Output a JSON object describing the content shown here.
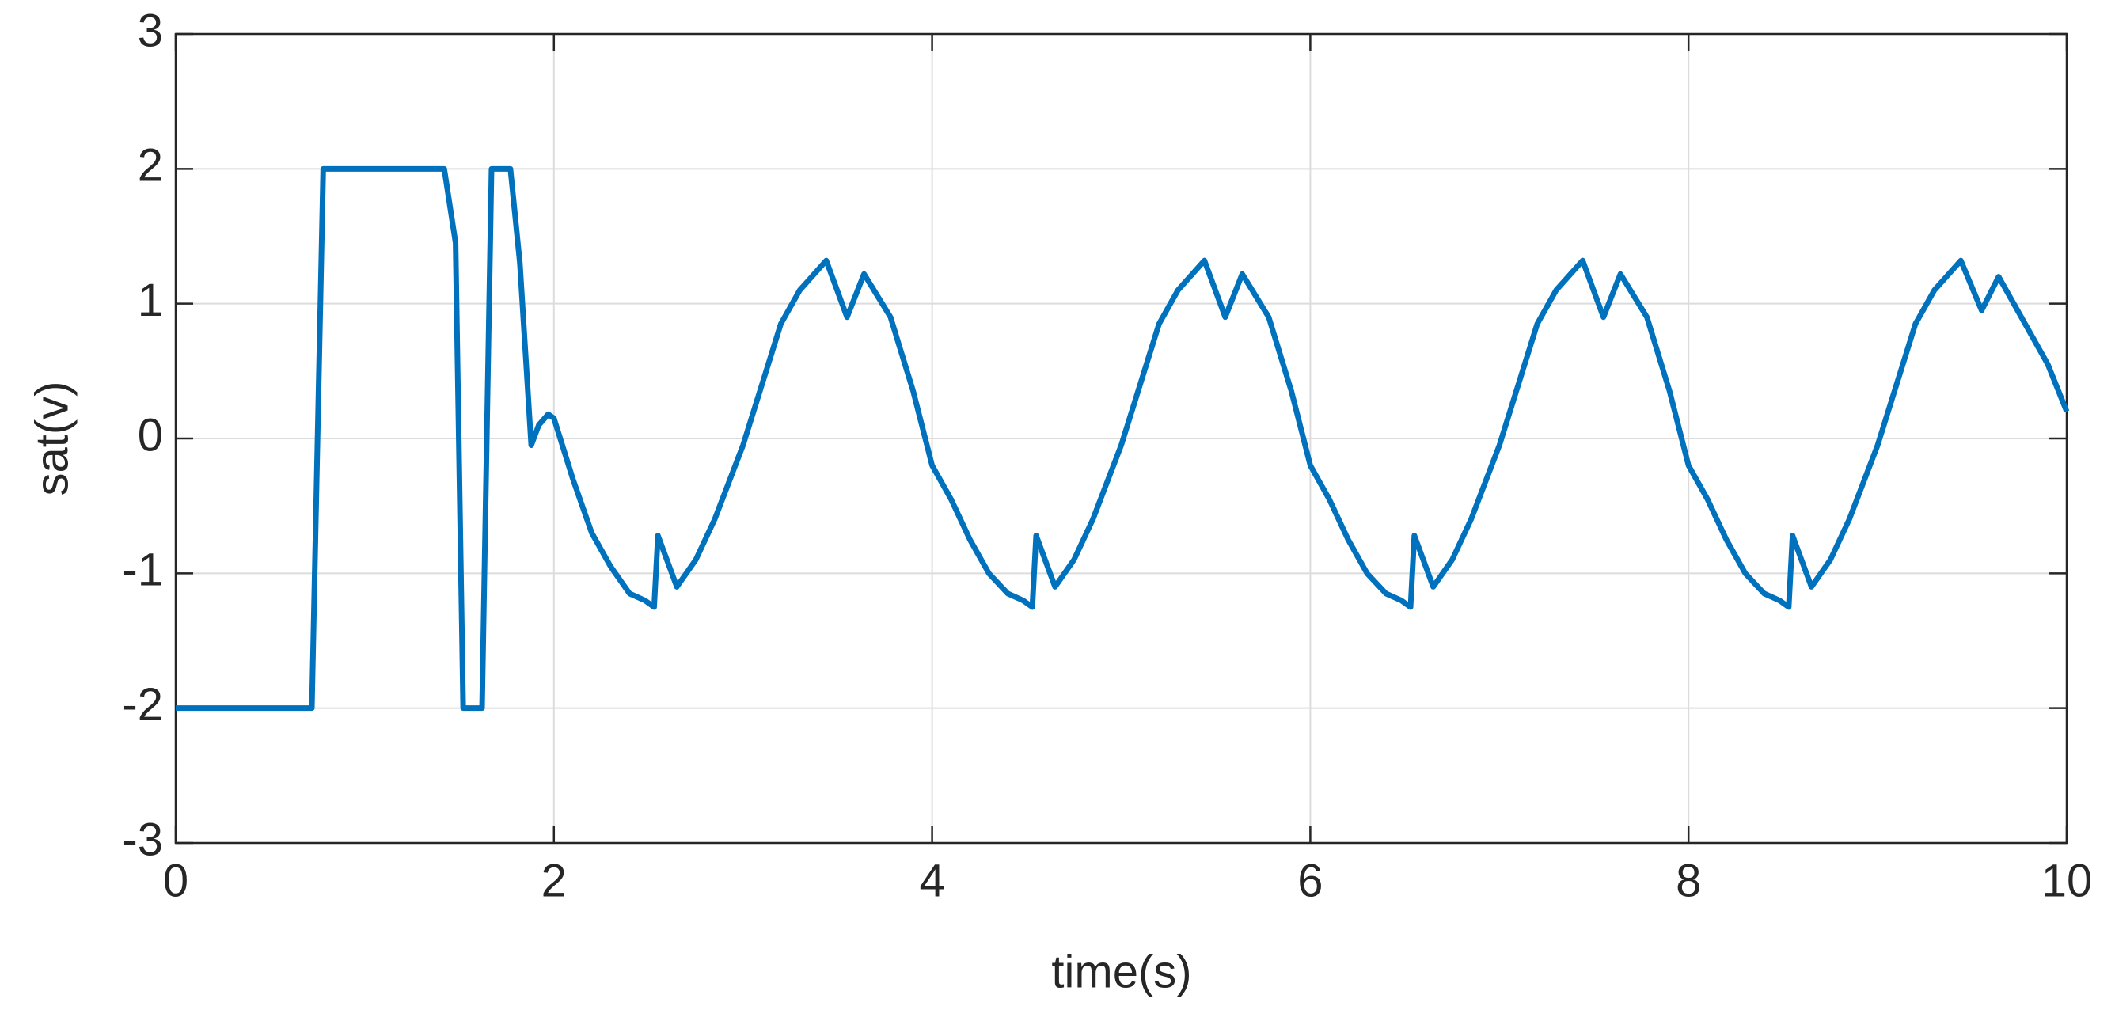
{
  "chart_data": {
    "type": "line",
    "x_label": "time(s)",
    "y_label": "sat(v)",
    "xlim": [
      0,
      10
    ],
    "xticks": [
      0,
      2,
      4,
      6,
      8,
      10
    ],
    "ylim": [
      -3,
      3
    ],
    "yticks": [
      -3,
      -2,
      -1,
      0,
      1,
      2,
      3
    ],
    "grid": true,
    "series": [
      {
        "color": "#0072bd",
        "x": [
          0,
          0.72,
          0.78,
          1.42,
          1.48,
          1.52,
          1.62,
          1.67,
          1.77,
          1.82,
          1.88,
          1.92,
          1.97,
          2.0,
          2.1,
          2.2,
          2.3,
          2.4,
          2.48,
          2.53,
          2.55,
          2.65,
          2.75,
          2.85,
          3.0,
          3.1,
          3.2,
          3.3,
          3.44,
          3.55,
          3.64,
          3.78,
          3.9,
          4.0,
          4.1,
          4.2,
          4.3,
          4.4,
          4.48,
          4.53,
          4.55,
          4.65,
          4.75,
          4.85,
          5.0,
          5.1,
          5.2,
          5.3,
          5.44,
          5.55,
          5.64,
          5.78,
          5.9,
          6.0,
          6.1,
          6.2,
          6.3,
          6.4,
          6.48,
          6.53,
          6.55,
          6.65,
          6.75,
          6.85,
          7.0,
          7.1,
          7.2,
          7.3,
          7.44,
          7.55,
          7.64,
          7.78,
          7.9,
          8.0,
          8.1,
          8.2,
          8.3,
          8.4,
          8.48,
          8.53,
          8.55,
          8.65,
          8.75,
          8.85,
          9.0,
          9.1,
          9.2,
          9.3,
          9.44,
          9.55,
          9.64,
          9.78,
          9.9,
          10
        ],
        "values": [
          -2,
          -2,
          2,
          2,
          1.45,
          -2,
          -2,
          2,
          2,
          1.3,
          -0.05,
          0.1,
          0.18,
          0.15,
          -0.3,
          -0.7,
          -0.95,
          -1.15,
          -1.2,
          -1.25,
          -0.72,
          -1.1,
          -0.9,
          -0.6,
          -0.05,
          0.4,
          0.85,
          1.1,
          1.32,
          0.9,
          1.22,
          0.9,
          0.35,
          -0.2,
          -0.45,
          -0.75,
          -1.0,
          -1.15,
          -1.2,
          -1.25,
          -0.72,
          -1.1,
          -0.9,
          -0.6,
          -0.05,
          0.4,
          0.85,
          1.1,
          1.32,
          0.9,
          1.22,
          0.9,
          0.35,
          -0.2,
          -0.45,
          -0.75,
          -1.0,
          -1.15,
          -1.2,
          -1.25,
          -0.72,
          -1.1,
          -0.9,
          -0.6,
          -0.05,
          0.4,
          0.85,
          1.1,
          1.32,
          0.9,
          1.22,
          0.9,
          0.35,
          -0.2,
          -0.45,
          -0.75,
          -1.0,
          -1.15,
          -1.2,
          -1.25,
          -0.72,
          -1.1,
          -0.9,
          -0.6,
          -0.05,
          0.4,
          0.85,
          1.1,
          1.32,
          0.95,
          1.2,
          0.85,
          0.55,
          0.2
        ]
      }
    ]
  }
}
